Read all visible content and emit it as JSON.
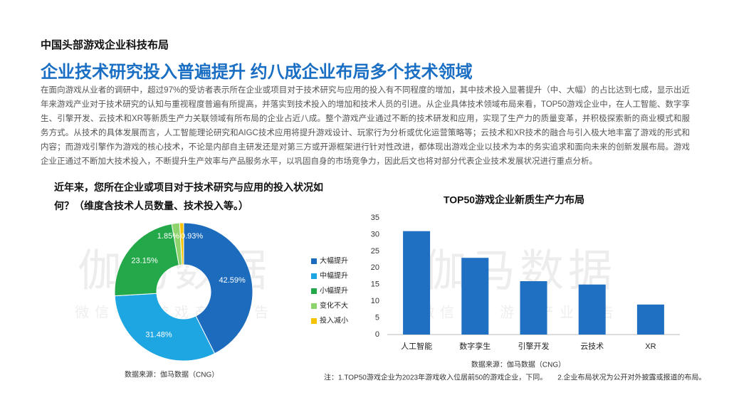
{
  "header": {
    "section": "中国头部游戏企业科技布局",
    "title": "企业技术研究投入普遍提升 约八成企业布局多个技术领域"
  },
  "body": "在面向游戏从业者的调研中，超过97%的受访者表示所在企业或项目对于技术研究与应用的投入有不同程度的增加，其中技术投入显著提升（中、大幅）的占比达到七成，显示出近年来游戏产业对于技术研究的认知与重视程度普遍有所提高，并落实到技术投入的增加和技术人员的引进。从企业具体技术领域布局来看，TOP50游戏企业中，在人工智能、数字孪生、引擎开发、云技术和XR等新质生产力关联领域有所布局的企业占近八成。整个游戏产业通过不断的技术研发和应用，实现了生产力的质量变革，并积极探索新的商业模式和服务方式。从技术的具体发展而言，人工智能理论研究和AIGC技术应用将提升游戏设计、玩家行为分析或优化运营策略等；云技术和XR技术的融合与引入极大地丰富了游戏的形式和内容；而游戏引擎作为游戏的核心技术，不论是内部自主研发还是对第三方或开源框架进行针对性改进，都体现出游戏企业以技术为本的务实追求和面向未来的创新发展布局。游戏企业正通过不断加大技术投入，不断提升生产效率与产品服务水平，以巩固自身的市场竞争力，因此后文也将对部分代表企业技术发展状况进行重点分析。",
  "watermark": {
    "title": "伽马数据",
    "subtitle": "微信号：游戏产业报告"
  },
  "note": "注：1.TOP50游戏企业为2023年游戏收入位居前50的游戏企业，下同。　　2.企业布局状况为公开对外披露或报道的布局。",
  "chart_data": [
    {
      "type": "pie",
      "title": "近年来，您所在企业或项目对于技术研究与应用的投入状况如何？（维度含技术人员数量、技术投入等。）",
      "categories": [
        "大幅提升",
        "中幅提升",
        "小幅提升",
        "变化不大",
        "投入减小"
      ],
      "values": [
        42.59,
        31.48,
        23.15,
        1.85,
        0.93
      ],
      "value_labels": [
        "42.59%",
        "31.48%",
        "23.15%",
        "1.85%",
        "0.93%"
      ],
      "colors": [
        "#1c6bbd",
        "#1ea6e3",
        "#23a84a",
        "#8ed36b",
        "#f5c300"
      ],
      "source": "数据来源：伽马数据（CNG）"
    },
    {
      "type": "bar",
      "title": "TOP50游戏企业新质生产力布局",
      "categories": [
        "人工智能",
        "数字孪生",
        "引擎开发",
        "云技术",
        "XR"
      ],
      "values": [
        31,
        23,
        16,
        15,
        9
      ],
      "color": "#1f6fc2",
      "ylim": [
        0,
        35
      ],
      "yticks": [
        0,
        5,
        10,
        15,
        20,
        25,
        30,
        35
      ],
      "grid": false,
      "source": "数据来源：伽马数据（CNG）"
    }
  ]
}
